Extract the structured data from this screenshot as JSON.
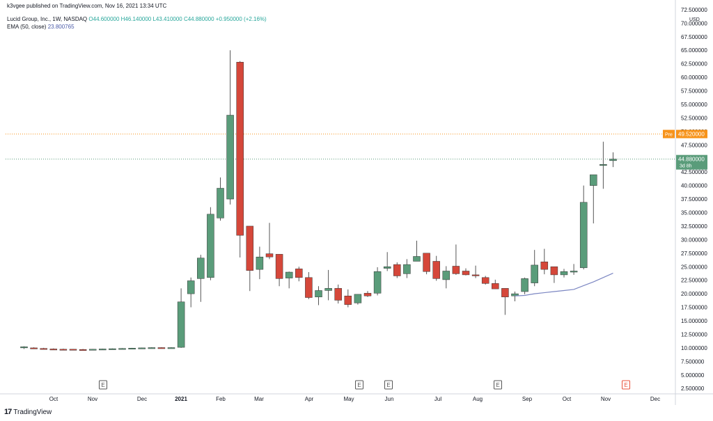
{
  "header": {
    "published": "k3vgee published on TradingView.com, Nov 16, 2021 13:34 UTC"
  },
  "legend": {
    "symbol": "Lucid Group, Inc., 1W, NASDAQ",
    "ohlc": "O44.600000  H46.140000  L43.410000  C44.880000  +0.950000 (+2.16%)",
    "ema_label": "EMA (50, close)",
    "ema_value": "23.800765"
  },
  "footer": {
    "brand": "TradingView",
    "logo": "tradingview-logo-icon"
  },
  "colors": {
    "up": "#5a9c7a",
    "down": "#d5473a",
    "ema": "#7b86c2",
    "pre": "#f7931a",
    "price": "#5a9c7a",
    "grid": "#e0e3eb"
  },
  "chart_data": {
    "type": "candlestick",
    "title": "Lucid Group, Inc., 1W, NASDAQ",
    "currency": "USD",
    "ylim": [
      1.5,
      73
    ],
    "y_ticks": [
      "72.500000",
      "70.000000",
      "67.500000",
      "65.000000",
      "62.500000",
      "60.000000",
      "57.500000",
      "55.000000",
      "52.500000",
      "50.000000",
      "47.500000",
      "45.000000",
      "42.500000",
      "40.000000",
      "37.500000",
      "35.000000",
      "32.500000",
      "30.000000",
      "27.500000",
      "25.000000",
      "22.500000",
      "20.000000",
      "17.500000",
      "15.000000",
      "12.500000",
      "10.000000",
      "7.500000",
      "5.000000",
      "2.500000"
    ],
    "x_tick_labels": [
      "Oct",
      "Nov",
      "Dec",
      "2021",
      "Feb",
      "Mar",
      "Apr",
      "May",
      "Jun",
      "Jul",
      "Aug",
      "Sep",
      "Oct",
      "Nov",
      "Dec"
    ],
    "earnings_marker_label": "E",
    "earnings_marker_count": 5,
    "price_labels": {
      "pre": {
        "tag": "Pre",
        "value": "49.520000"
      },
      "last": {
        "value": "44.880000",
        "countdown": "3d 8h"
      }
    },
    "candles": [
      {
        "o": 10.0,
        "h": 10.3,
        "l": 9.8,
        "c": 10.2
      },
      {
        "o": 10.0,
        "h": 10.1,
        "l": 9.8,
        "c": 9.9
      },
      {
        "o": 9.9,
        "h": 10.0,
        "l": 9.7,
        "c": 9.85
      },
      {
        "o": 9.8,
        "h": 9.9,
        "l": 9.6,
        "c": 9.7
      },
      {
        "o": 9.75,
        "h": 9.85,
        "l": 9.6,
        "c": 9.7
      },
      {
        "o": 9.75,
        "h": 9.8,
        "l": 9.6,
        "c": 9.65
      },
      {
        "o": 9.7,
        "h": 9.8,
        "l": 9.6,
        "c": 9.65
      },
      {
        "o": 9.7,
        "h": 9.8,
        "l": 9.6,
        "c": 9.75
      },
      {
        "o": 9.75,
        "h": 9.85,
        "l": 9.7,
        "c": 9.8
      },
      {
        "o": 9.8,
        "h": 9.9,
        "l": 9.75,
        "c": 9.85
      },
      {
        "o": 9.85,
        "h": 9.95,
        "l": 9.8,
        "c": 9.9
      },
      {
        "o": 9.9,
        "h": 10.0,
        "l": 9.85,
        "c": 9.95
      },
      {
        "o": 9.95,
        "h": 10.05,
        "l": 9.9,
        "c": 10.0
      },
      {
        "o": 10.0,
        "h": 10.1,
        "l": 9.95,
        "c": 10.05
      },
      {
        "o": 10.05,
        "h": 10.1,
        "l": 9.95,
        "c": 10.0
      },
      {
        "o": 10.0,
        "h": 10.1,
        "l": 9.95,
        "c": 10.05
      },
      {
        "o": 10.1,
        "h": 21.0,
        "l": 10.0,
        "c": 18.5
      },
      {
        "o": 20.0,
        "h": 23.0,
        "l": 17.5,
        "c": 22.4
      },
      {
        "o": 22.8,
        "h": 27.2,
        "l": 18.5,
        "c": 26.6
      },
      {
        "o": 23.0,
        "h": 36.0,
        "l": 22.5,
        "c": 34.7
      },
      {
        "o": 34.0,
        "h": 41.5,
        "l": 33.5,
        "c": 39.5
      },
      {
        "o": 37.5,
        "h": 65.0,
        "l": 36.5,
        "c": 53.0
      },
      {
        "o": 62.8,
        "h": 63.0,
        "l": 26.7,
        "c": 30.8
      },
      {
        "o": 32.5,
        "h": 32.5,
        "l": 20.5,
        "c": 24.3
      },
      {
        "o": 24.5,
        "h": 28.7,
        "l": 22.7,
        "c": 26.8
      },
      {
        "o": 27.4,
        "h": 33.1,
        "l": 26.4,
        "c": 26.8
      },
      {
        "o": 27.3,
        "h": 27.3,
        "l": 21.4,
        "c": 22.8
      },
      {
        "o": 22.9,
        "h": 24.1,
        "l": 21.0,
        "c": 24.0
      },
      {
        "o": 24.6,
        "h": 25.0,
        "l": 22.3,
        "c": 23.0
      },
      {
        "o": 23.0,
        "h": 24.0,
        "l": 19.0,
        "c": 19.3
      },
      {
        "o": 19.4,
        "h": 21.4,
        "l": 17.9,
        "c": 20.6
      },
      {
        "o": 20.6,
        "h": 24.4,
        "l": 18.8,
        "c": 21.0
      },
      {
        "o": 21.0,
        "h": 21.7,
        "l": 18.2,
        "c": 18.8
      },
      {
        "o": 19.6,
        "h": 20.8,
        "l": 17.5,
        "c": 18.0
      },
      {
        "o": 18.3,
        "h": 19.9,
        "l": 18.0,
        "c": 19.9
      },
      {
        "o": 20.1,
        "h": 20.5,
        "l": 19.4,
        "c": 19.6
      },
      {
        "o": 20.1,
        "h": 24.9,
        "l": 19.7,
        "c": 24.1
      },
      {
        "o": 24.7,
        "h": 27.7,
        "l": 24.2,
        "c": 25.0
      },
      {
        "o": 25.4,
        "h": 25.8,
        "l": 22.9,
        "c": 23.3
      },
      {
        "o": 23.7,
        "h": 26.4,
        "l": 22.9,
        "c": 25.4
      },
      {
        "o": 26.0,
        "h": 29.8,
        "l": 26.0,
        "c": 26.9
      },
      {
        "o": 27.5,
        "h": 27.5,
        "l": 23.6,
        "c": 24.1
      },
      {
        "o": 26.0,
        "h": 27.0,
        "l": 22.4,
        "c": 22.8
      },
      {
        "o": 22.6,
        "h": 25.1,
        "l": 21.0,
        "c": 24.2
      },
      {
        "o": 25.1,
        "h": 29.1,
        "l": 23.5,
        "c": 23.7
      },
      {
        "o": 24.2,
        "h": 24.7,
        "l": 23.4,
        "c": 23.5
      },
      {
        "o": 23.5,
        "h": 25.2,
        "l": 22.9,
        "c": 23.4
      },
      {
        "o": 23.0,
        "h": 23.3,
        "l": 21.7,
        "c": 21.9
      },
      {
        "o": 21.9,
        "h": 22.6,
        "l": 20.9,
        "c": 20.9
      },
      {
        "o": 21.0,
        "h": 21.0,
        "l": 16.1,
        "c": 19.4
      },
      {
        "o": 19.6,
        "h": 20.4,
        "l": 18.6,
        "c": 20.0
      },
      {
        "o": 20.4,
        "h": 23.0,
        "l": 19.9,
        "c": 22.8
      },
      {
        "o": 22.0,
        "h": 28.1,
        "l": 21.4,
        "c": 25.3
      },
      {
        "o": 25.9,
        "h": 28.3,
        "l": 23.6,
        "c": 24.5
      },
      {
        "o": 25.0,
        "h": 25.0,
        "l": 22.0,
        "c": 23.5
      },
      {
        "o": 23.5,
        "h": 24.6,
        "l": 23.0,
        "c": 24.1
      },
      {
        "o": 24.0,
        "h": 25.5,
        "l": 23.5,
        "c": 24.2
      },
      {
        "o": 24.8,
        "h": 40.0,
        "l": 24.5,
        "c": 36.9
      },
      {
        "o": 40.0,
        "h": 42.0,
        "l": 33.0,
        "c": 42.0
      },
      {
        "o": 43.7,
        "h": 48.1,
        "l": 39.4,
        "c": 43.9
      },
      {
        "o": 44.6,
        "h": 46.14,
        "l": 43.41,
        "c": 44.88
      }
    ],
    "ema": {
      "name": "EMA (50, close)",
      "points": [
        [
          50,
          19.6
        ],
        [
          51,
          19.7
        ],
        [
          52,
          20.0
        ],
        [
          53,
          20.2
        ],
        [
          54,
          20.4
        ],
        [
          55,
          20.6
        ],
        [
          56,
          20.8
        ],
        [
          57,
          21.5
        ],
        [
          58,
          22.2
        ],
        [
          59,
          23.0
        ],
        [
          60,
          23.8
        ]
      ]
    }
  }
}
